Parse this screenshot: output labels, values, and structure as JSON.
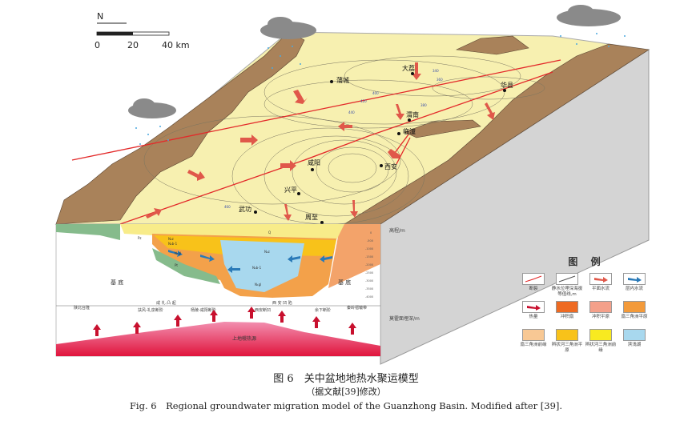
{
  "north_label": "N",
  "scale": {
    "ticks": [
      "0",
      "20",
      "40 km"
    ]
  },
  "cities": [
    "大荔",
    "蒲城",
    "华县",
    "渭南",
    "临潼",
    "咸阳",
    "西安",
    "兴平",
    "武功",
    "周至"
  ],
  "contour_labels": [
    "340",
    "360",
    "380",
    "400",
    "420",
    "440",
    "460"
  ],
  "section": {
    "units": [
      "Q",
      "N₂z",
      "N₂b-1",
      "N₁gl",
      "Pz",
      "Pt",
      "N₂z",
      "N₂b-1",
      "N₁gl"
    ],
    "basement_left": "基 底",
    "basement_right": "基 底",
    "heat_source": "上地幔热源",
    "tectonic_top": [
      "咸 礼 凸 起",
      "西 安 凹 陷"
    ],
    "tectonic_units": [
      "陕北台隆",
      "扶风-礼泉断阶",
      "杨陵-咸阳断阶",
      "西安断凹",
      "余下断阶",
      "秦岭褶皱带"
    ],
    "elev_axis_label": "高程/m",
    "elev_ticks": [
      "0",
      "-500",
      "-1000",
      "-1500",
      "-2000",
      "-2500",
      "-3000",
      "-3500",
      "-4000"
    ],
    "moho_axis_label": "莫霍面埋深/m"
  },
  "legend": {
    "title": "图 例",
    "items": [
      {
        "label": "断裂",
        "icon": "fault-line"
      },
      {
        "label": "静水位埋深海拔等值线,m",
        "icon": "contour-line"
      },
      {
        "label": "平面水流",
        "icon": "red-arrow",
        "color": "#e0584a"
      },
      {
        "label": "层内水流",
        "icon": "blue-arrow",
        "color": "#2a7ab8"
      },
      {
        "label": "热量",
        "icon": "heat-arrow",
        "color": "#c8102e"
      },
      {
        "label": "冲积扇",
        "color": "#ee6a22"
      },
      {
        "label": "冲积平原",
        "color": "#f4a08a"
      },
      {
        "label": "扇三角洲平原",
        "color": "#f39a3a"
      },
      {
        "label": "扇三角洲前缘",
        "color": "#f8c894"
      },
      {
        "label": "辫状河三角洲平原",
        "color": "#f8c21a"
      },
      {
        "label": "辫状河三角洲前缘",
        "color": "#f8ea20"
      },
      {
        "label": "滨浅湖",
        "color": "#a8d8ee"
      }
    ]
  },
  "caption": {
    "cn": "图 6　关中盆地地热水聚运模型",
    "cn_sub": "（据文献[39]修改）",
    "en": "Fig. 6　Regional groundwater migration model of the Guanzhong Basin. Modified after [39]."
  }
}
